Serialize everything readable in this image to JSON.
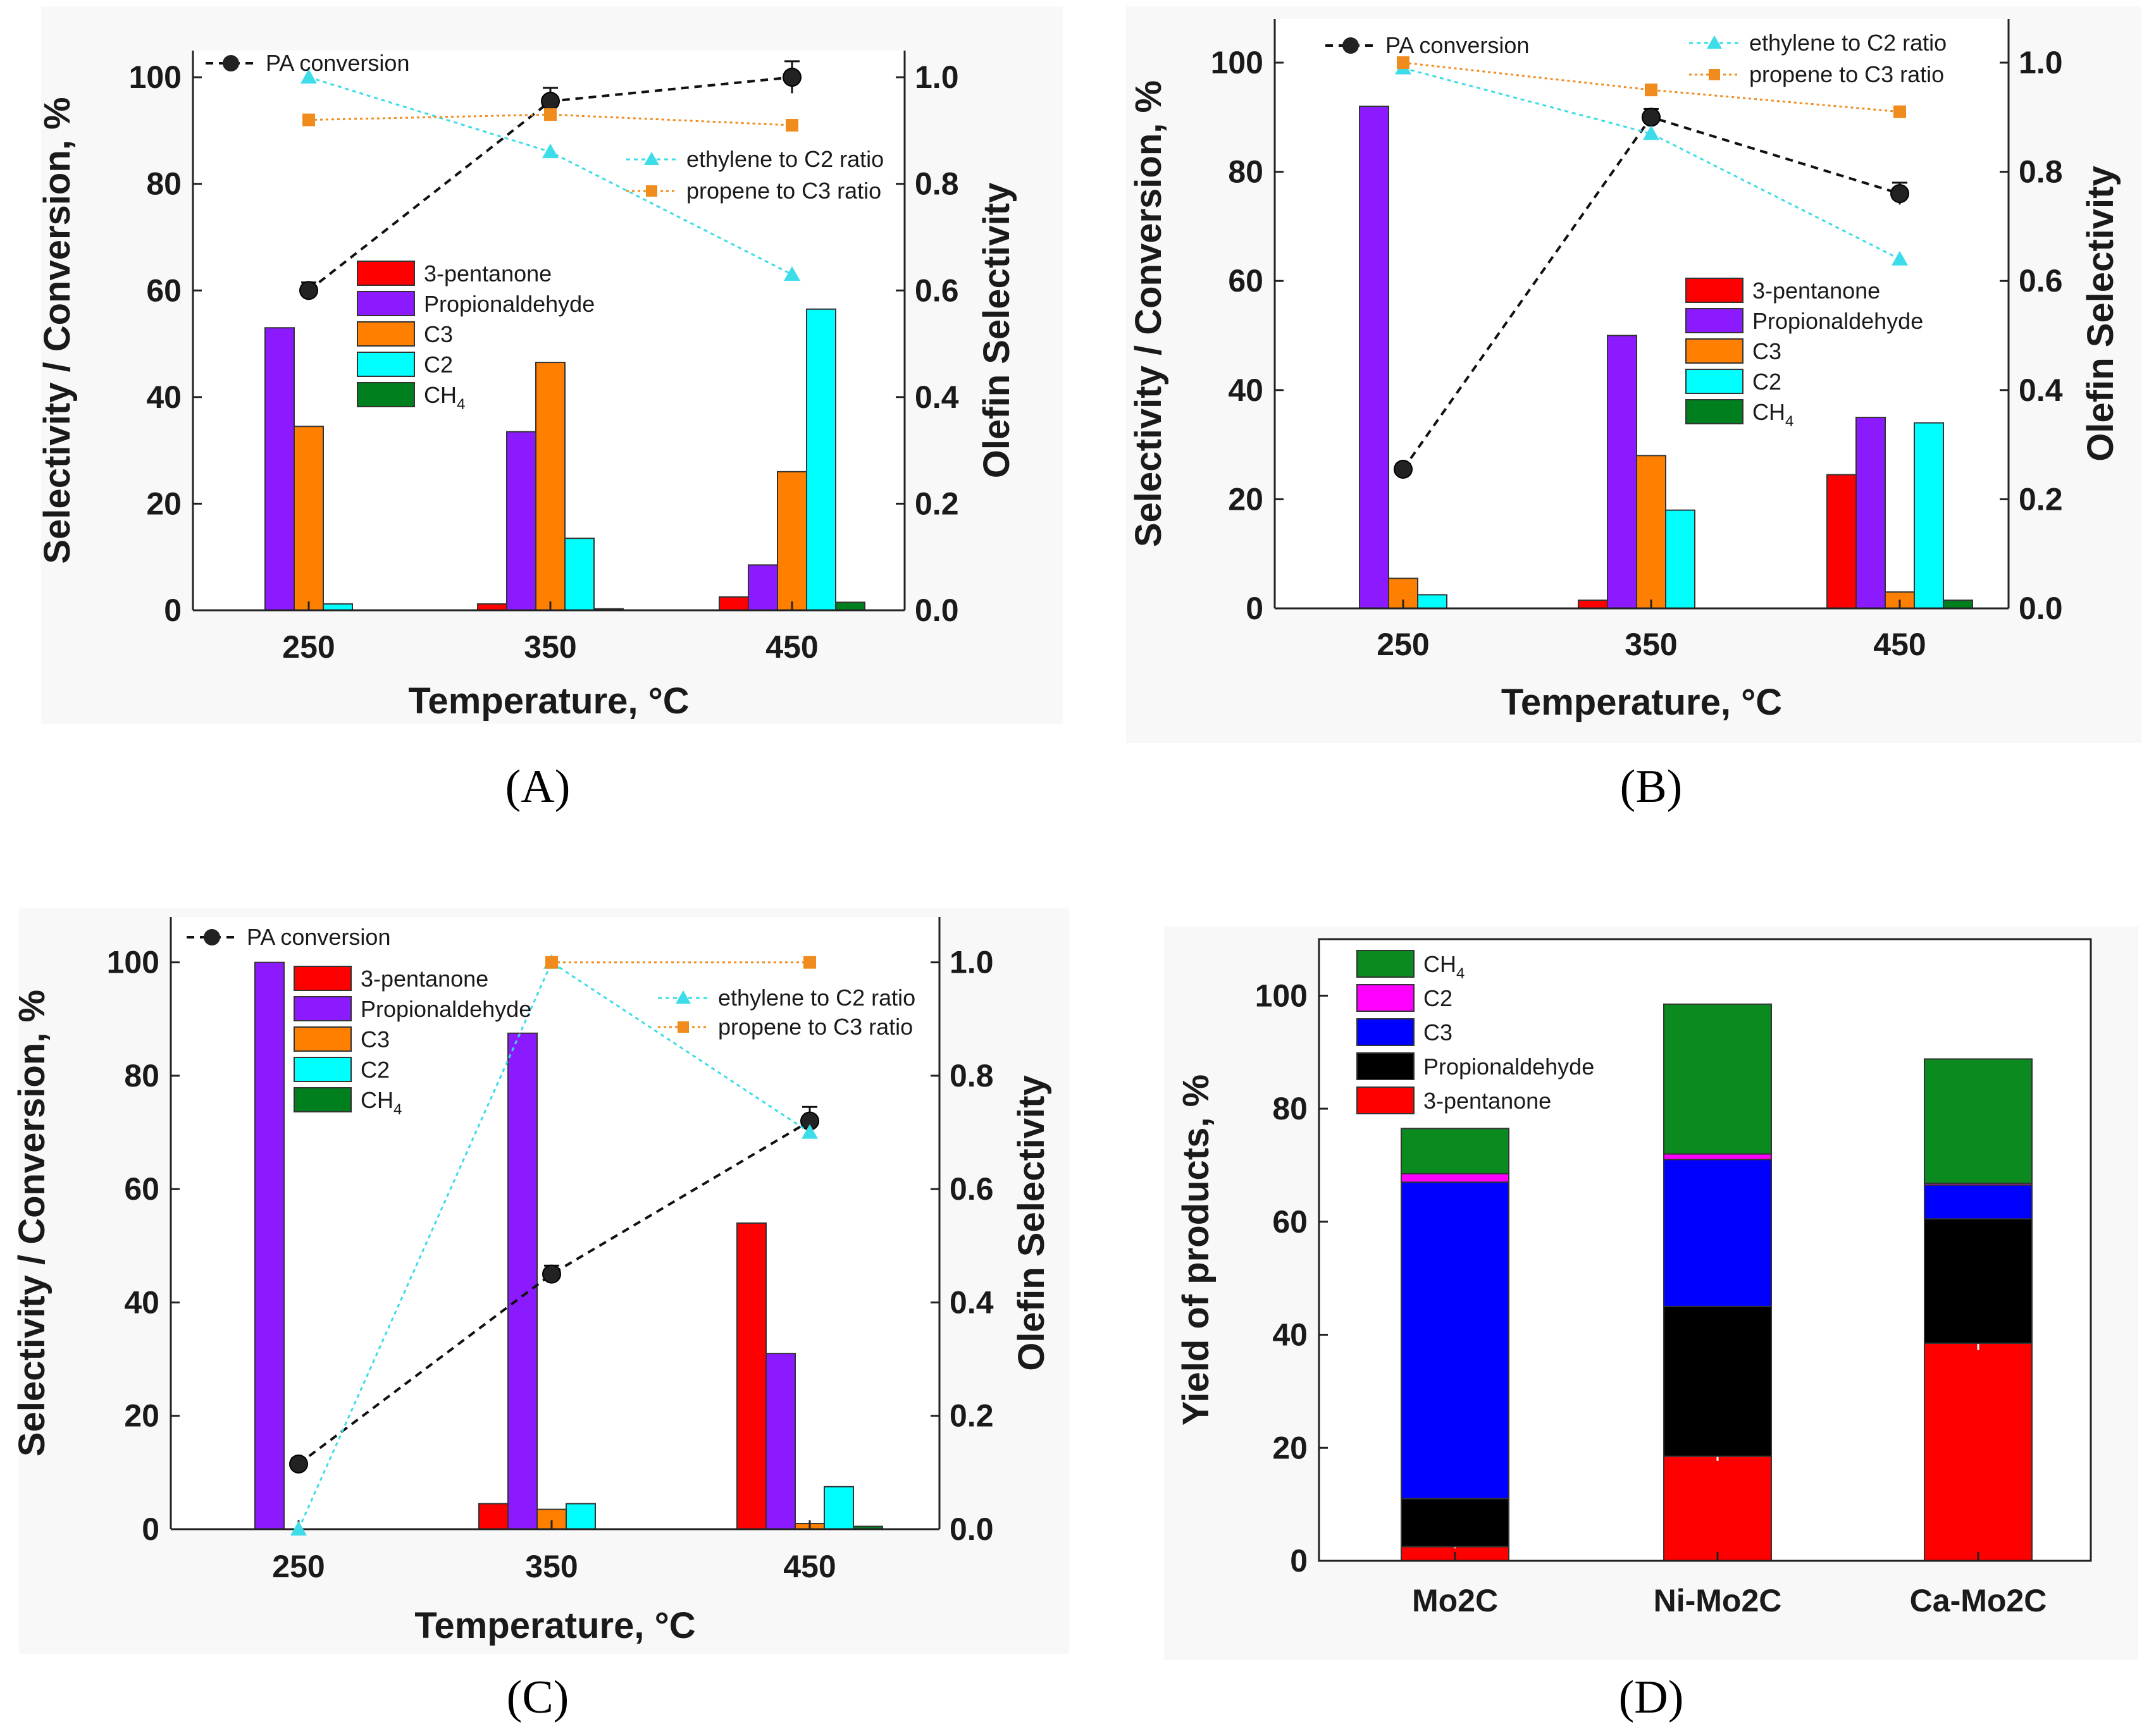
{
  "figure": {
    "panel_letters": [
      "(A)",
      "(B)",
      "(C)",
      "(D)"
    ]
  },
  "colors": {
    "pentanone": "#ff0000",
    "propionaldehyde": "#8c1aff",
    "c3": "#ff8000",
    "c2": "#00ffff",
    "ch4": "#007f1f",
    "conversion": "#111111",
    "ethylene_ratio": "#3cdce8",
    "propene_ratio": "#f08c1e",
    "stack_ch4": "#0b8a1f",
    "stack_c2": "#ff00ff",
    "stack_c3": "#0000ff",
    "stack_propionaldehyde": "#000000",
    "stack_pentanone": "#ff0000"
  },
  "chart_data": [
    {
      "panel": "(A)",
      "type": "bar",
      "xlabel": "Temperature, °C",
      "ylabel": "Selectivity / Conversion, %",
      "y2label": "Olefin Selectivity",
      "categories": [
        "250",
        "350",
        "450"
      ],
      "ylim": [
        0,
        105
      ],
      "yticks": [
        "0",
        "20",
        "40",
        "60",
        "80",
        "100"
      ],
      "y2lim": [
        0,
        1.05
      ],
      "y2ticks": [
        "0.0",
        "0.2",
        "0.4",
        "0.6",
        "0.8",
        "1.0"
      ],
      "series": [
        {
          "name": "3-pentanone",
          "values": [
            0,
            1.2,
            2.5
          ]
        },
        {
          "name": "Propionaldehyde",
          "values": [
            53,
            33.5,
            8.5
          ]
        },
        {
          "name": "C3",
          "values": [
            34.5,
            46.5,
            26
          ]
        },
        {
          "name": "C2",
          "values": [
            1.2,
            13.5,
            56.5
          ]
        },
        {
          "name": "CH4",
          "values": [
            0,
            0.3,
            1.5
          ]
        }
      ],
      "legend_labels": [
        "3-pentanone",
        "Propionaldehyde",
        "C3",
        "C2",
        "CH"
      ],
      "legend_sub": "4",
      "lines": [
        {
          "name": "PA conversion",
          "axis": "left",
          "values": [
            60,
            95.5,
            100
          ],
          "errors": [
            1.5,
            2.5,
            3
          ]
        },
        {
          "name": "ethylene to C2 ratio",
          "axis": "right",
          "values": [
            1.0,
            0.86,
            0.63
          ]
        },
        {
          "name": "propene to C3 ratio",
          "axis": "right",
          "values": [
            0.92,
            0.93,
            0.91
          ]
        }
      ]
    },
    {
      "panel": "(B)",
      "type": "bar",
      "xlabel": "Temperature, °C",
      "ylabel": "Selectivity / Conversion, %",
      "y2label": "Olefin Selectivity",
      "categories": [
        "250",
        "350",
        "450"
      ],
      "ylim": [
        0,
        108
      ],
      "yticks": [
        "0",
        "20",
        "40",
        "60",
        "80",
        "100"
      ],
      "y2lim": [
        0,
        1.08
      ],
      "y2ticks": [
        "0.0",
        "0.2",
        "0.4",
        "0.6",
        "0.8",
        "1.0"
      ],
      "series": [
        {
          "name": "3-pentanone",
          "values": [
            0,
            1.5,
            24.5
          ]
        },
        {
          "name": "Propionaldehyde",
          "values": [
            92,
            50,
            35
          ]
        },
        {
          "name": "C3",
          "values": [
            5.5,
            28,
            3
          ]
        },
        {
          "name": "C2",
          "values": [
            2.5,
            18,
            34
          ]
        },
        {
          "name": "CH4",
          "values": [
            0,
            0,
            1.5
          ]
        }
      ],
      "legend_labels": [
        "3-pentanone",
        "Propionaldehyde",
        "C3",
        "C2",
        "CH"
      ],
      "legend_sub": "4",
      "lines": [
        {
          "name": "PA conversion",
          "axis": "left",
          "values": [
            25.5,
            90,
            76
          ],
          "errors": [
            1,
            1.5,
            2
          ]
        },
        {
          "name": "ethylene to C2 ratio",
          "axis": "right",
          "values": [
            0.99,
            0.87,
            0.64
          ]
        },
        {
          "name": "propene to C3 ratio",
          "axis": "right",
          "values": [
            1.0,
            0.95,
            0.91
          ]
        }
      ]
    },
    {
      "panel": "(C)",
      "type": "bar",
      "xlabel": "Temperature, °C",
      "ylabel": "Selectivity / Conversion, %",
      "y2label": "Olefin Selectivity",
      "categories": [
        "250",
        "350",
        "450"
      ],
      "ylim": [
        0,
        108
      ],
      "yticks": [
        "0",
        "20",
        "40",
        "60",
        "80",
        "100"
      ],
      "y2lim": [
        0,
        1.08
      ],
      "y2ticks": [
        "0.0",
        "0.2",
        "0.4",
        "0.6",
        "0.8",
        "1.0"
      ],
      "series": [
        {
          "name": "3-pentanone",
          "values": [
            0,
            4.5,
            54
          ]
        },
        {
          "name": "Propionaldehyde",
          "values": [
            100,
            87.5,
            31
          ]
        },
        {
          "name": "C3",
          "values": [
            0,
            3.5,
            1
          ]
        },
        {
          "name": "C2",
          "values": [
            0,
            4.5,
            7.5
          ]
        },
        {
          "name": "CH4",
          "values": [
            0,
            0,
            0.5
          ]
        }
      ],
      "legend_labels": [
        "3-pentanone",
        "Propionaldehyde",
        "C3",
        "C2",
        "CH"
      ],
      "legend_sub": "4",
      "lines": [
        {
          "name": "PA conversion",
          "axis": "left",
          "values": [
            11.5,
            45,
            72
          ],
          "errors": [
            1,
            1.5,
            2.5
          ]
        },
        {
          "name": "ethylene to C2 ratio",
          "axis": "right",
          "values": [
            0.0,
            1.0,
            0.7
          ]
        },
        {
          "name": "propene to C3 ratio",
          "axis": "right",
          "values": [
            null,
            1.0,
            1.0
          ]
        }
      ]
    },
    {
      "panel": "(D)",
      "type": "bar",
      "stacked": true,
      "ylabel": "Yield of products, %",
      "categories": [
        "Mo2C",
        "Ni-Mo2C",
        "Ca-Mo2C"
      ],
      "ylim": [
        0,
        110
      ],
      "yticks": [
        "0",
        "20",
        "40",
        "60",
        "80",
        "100"
      ],
      "series": [
        {
          "name": "3-pentanone",
          "values": [
            2.5,
            18.5,
            38.5
          ],
          "errors": [
            0.3,
            0.8,
            1.2
          ]
        },
        {
          "name": "Propionaldehyde",
          "values": [
            8.5,
            26.5,
            22
          ]
        },
        {
          "name": "C3",
          "values": [
            56,
            26,
            6
          ]
        },
        {
          "name": "C2",
          "values": [
            1.5,
            1,
            0.3
          ]
        },
        {
          "name": "CH4",
          "values": [
            8,
            26.5,
            22
          ]
        }
      ],
      "legend_labels": [
        "CH",
        "C2",
        "C3",
        "Propionaldehyde",
        "3-pentanone"
      ],
      "legend_sub": "4"
    }
  ]
}
